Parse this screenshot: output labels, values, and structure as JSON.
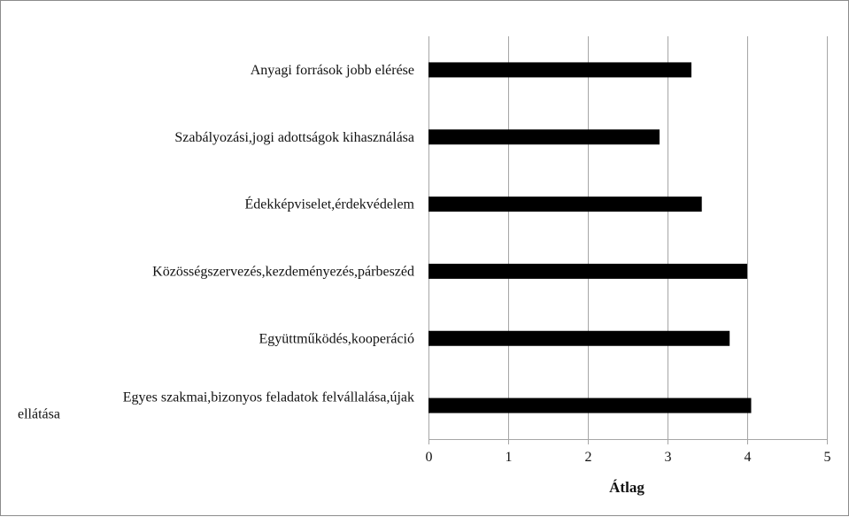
{
  "chart_data": {
    "type": "bar",
    "orientation": "horizontal",
    "categories": [
      [
        "Anyagi források jobb elérése"
      ],
      [
        "Szabályozási,jogi adottságok kihasználása"
      ],
      [
        "Édekképviselet,érdekvédelem"
      ],
      [
        "Közösségszervezés,kezdeményezés,párbeszéd"
      ],
      [
        "Együttműködés,kooperáció"
      ],
      [
        "Egyes szakmai,bizonyos feladatok felvállalása,újak",
        "ellátása"
      ]
    ],
    "values": [
      3.3,
      2.9,
      3.43,
      4.0,
      3.78,
      4.05
    ],
    "xlabel": "Átlag",
    "xlim": [
      0,
      5
    ],
    "xticks": [
      0,
      1,
      2,
      3,
      4,
      5
    ],
    "grid": "vertical",
    "bar_color": "#000000",
    "grid_color": "#a6a6a6"
  }
}
